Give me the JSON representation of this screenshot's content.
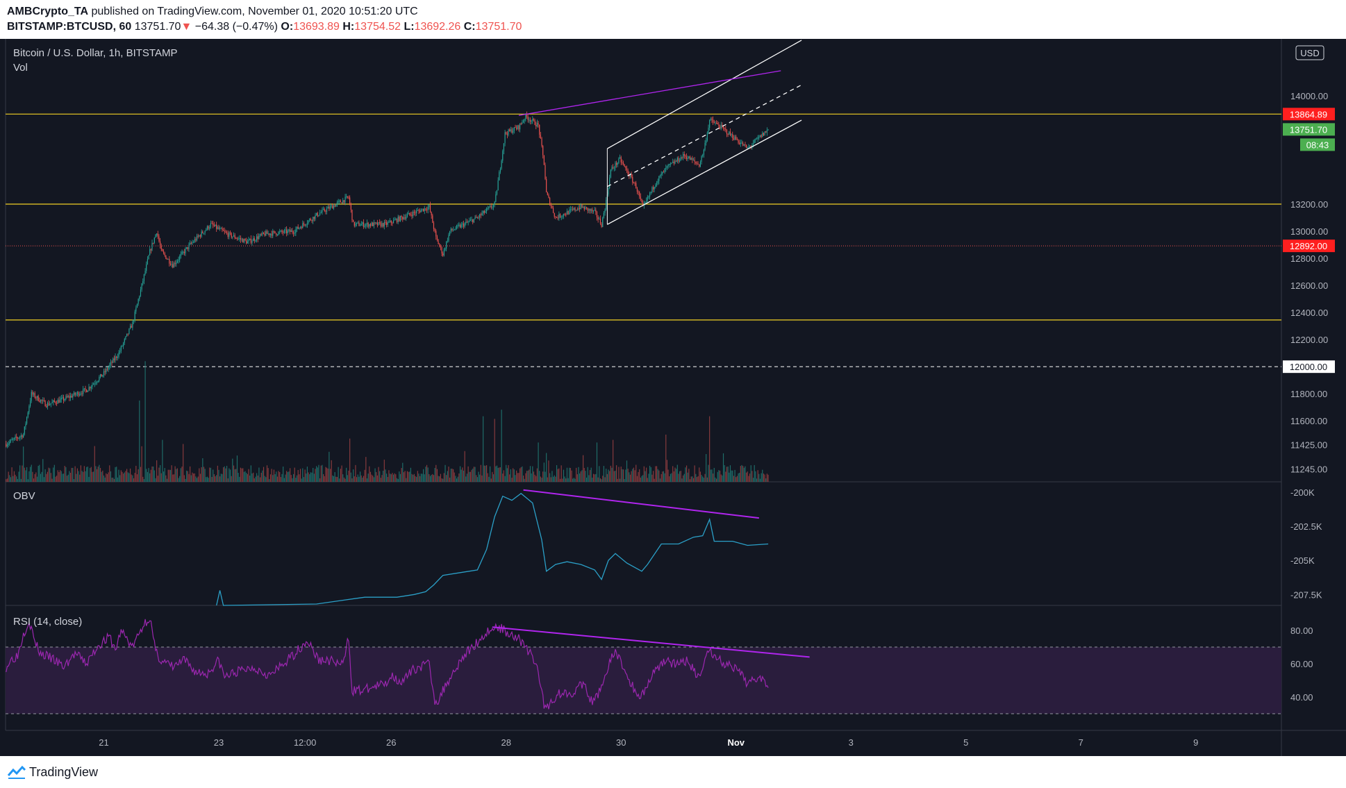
{
  "header": {
    "author": "AMBCrypto_TA",
    "published_text": "published on TradingView.com, November 01, 2020 10:51:20 UTC",
    "symbol": "BITSTAMP:BTCUSD, 60",
    "last": "13751.70",
    "change": "−64.38 (−0.47%)",
    "o_label": "O:",
    "o_value": "13693.89",
    "h_label": "H:",
    "h_value": "13754.52",
    "l_label": "L:",
    "l_value": "13692.26",
    "c_label": "C:",
    "c_value": "13751.70"
  },
  "footer": {
    "brand": "TradingView"
  },
  "colors": {
    "background": "#131722",
    "grid_border": "#363a45",
    "up": "#26a69a",
    "down": "#ef5350",
    "level": "#f2d024",
    "channel": "#ffffff",
    "divergence": "#b025ee",
    "obv": "#2ba0c8",
    "rsi": "#9c27b0",
    "rsi_band": "#2a1d3d",
    "label_red": "#ff1f1f",
    "label_green": "#4caf50"
  },
  "chart_data": {
    "type": "candlestick",
    "title": "Bitcoin / U.S. Dollar, 1h, BITSTAMP",
    "volume_label": "Vol",
    "currency": "USD",
    "ylim": [
      11150,
      14420
    ],
    "y_ticks": [
      "14000.00",
      "13200.00",
      "13000.00",
      "12800.00",
      "12600.00",
      "12400.00",
      "12200.00",
      "11800.00",
      "11600.00",
      "11425.00",
      "11245.00"
    ],
    "x_ticks": [
      {
        "label": "21",
        "bar": 85
      },
      {
        "label": "23",
        "bar": 185
      },
      {
        "label": "12:00",
        "bar": 260
      },
      {
        "label": "26",
        "bar": 335
      },
      {
        "label": "28",
        "bar": 435
      },
      {
        "label": "30",
        "bar": 535
      },
      {
        "label": "Nov",
        "bar": 635
      },
      {
        "label": "3",
        "bar": 735
      },
      {
        "label": "5",
        "bar": 835
      },
      {
        "label": "7",
        "bar": 935
      },
      {
        "label": "9",
        "bar": 1035
      }
    ],
    "total_slots": 1110,
    "keypoints": [
      [
        0,
        11430
      ],
      [
        15,
        11500
      ],
      [
        22,
        11800
      ],
      [
        35,
        11720
      ],
      [
        50,
        11760
      ],
      [
        70,
        11830
      ],
      [
        85,
        11950
      ],
      [
        98,
        12100
      ],
      [
        110,
        12320
      ],
      [
        118,
        12600
      ],
      [
        125,
        12850
      ],
      [
        131,
        13000
      ],
      [
        135,
        12850
      ],
      [
        145,
        12750
      ],
      [
        160,
        12900
      ],
      [
        178,
        13050
      ],
      [
        192,
        12980
      ],
      [
        210,
        12920
      ],
      [
        225,
        12980
      ],
      [
        250,
        13000
      ],
      [
        272,
        13130
      ],
      [
        298,
        13250
      ],
      [
        302,
        13050
      ],
      [
        330,
        13050
      ],
      [
        350,
        13120
      ],
      [
        368,
        13180
      ],
      [
        374,
        12950
      ],
      [
        380,
        12830
      ],
      [
        386,
        13000
      ],
      [
        410,
        13100
      ],
      [
        425,
        13200
      ],
      [
        430,
        13480
      ],
      [
        434,
        13720
      ],
      [
        446,
        13770
      ],
      [
        452,
        13850
      ],
      [
        463,
        13780
      ],
      [
        468,
        13500
      ],
      [
        470,
        13280
      ],
      [
        478,
        13100
      ],
      [
        486,
        13130
      ],
      [
        500,
        13180
      ],
      [
        512,
        13140
      ],
      [
        518,
        13050
      ],
      [
        522,
        13220
      ],
      [
        526,
        13450
      ],
      [
        534,
        13530
      ],
      [
        548,
        13330
      ],
      [
        554,
        13170
      ],
      [
        565,
        13360
      ],
      [
        575,
        13470
      ],
      [
        590,
        13560
      ],
      [
        603,
        13490
      ],
      [
        607,
        13600
      ],
      [
        612,
        13820
      ],
      [
        620,
        13780
      ],
      [
        632,
        13700
      ],
      [
        645,
        13610
      ],
      [
        655,
        13690
      ],
      [
        663,
        13750
      ]
    ],
    "candles_count": 664,
    "volume_ylim": [
      0,
      9
    ],
    "volume_spikes": [
      [
        116,
        6.2
      ],
      [
        121,
        9.2
      ],
      [
        136,
        3.2
      ],
      [
        299,
        3.3
      ],
      [
        415,
        5.0
      ],
      [
        425,
        4.8
      ],
      [
        431,
        5.5
      ],
      [
        463,
        3.0
      ],
      [
        574,
        3.6
      ],
      [
        612,
        5.0
      ],
      [
        514,
        3.0
      ],
      [
        470,
        2.2
      ]
    ],
    "levels": [
      {
        "price": 13864.89,
        "style": "solid",
        "label": "13864.89",
        "label_color": "red"
      },
      {
        "price": 13200,
        "style": "solid"
      },
      {
        "price": 12345,
        "style": "solid"
      }
    ],
    "dotted_levels": [
      {
        "price": 12892,
        "label": "12892.00",
        "label_color": "red"
      }
    ],
    "dashed_levels": [
      {
        "price": 12000,
        "label": "12000.00",
        "label_color": "white"
      }
    ],
    "last_price_label": "13751.70",
    "countdown_label": "08:43",
    "channel": {
      "upper": [
        [
          523,
          13610
        ],
        [
          692,
          14410
        ]
      ],
      "middle": [
        [
          523,
          13330
        ],
        [
          692,
          14080
        ]
      ],
      "lower": [
        [
          523,
          13050
        ],
        [
          692,
          13820
        ]
      ],
      "highlight": [
        [
          523,
          13610
        ],
        [
          540,
          13440
        ],
        [
          555,
          13270
        ],
        [
          560,
          13240
        ]
      ]
    },
    "price_divergence": [
      [
        446,
        13855
      ],
      [
        674,
        14185
      ]
    ],
    "obv": {
      "label": "OBV",
      "ylim": [
        -208300,
        -199250
      ],
      "y_ticks": [
        "-200K",
        "-202.5K",
        "-205K",
        "-207.5K"
      ],
      "keypoints": [
        [
          183,
          -208300
        ],
        [
          186,
          -207200
        ],
        [
          189,
          -208300
        ],
        [
          270,
          -208200
        ],
        [
          295,
          -207900
        ],
        [
          312,
          -207700
        ],
        [
          340,
          -207700
        ],
        [
          355,
          -207500
        ],
        [
          365,
          -207300
        ],
        [
          372,
          -206800
        ],
        [
          380,
          -206100
        ],
        [
          395,
          -205900
        ],
        [
          410,
          -205700
        ],
        [
          418,
          -204200
        ],
        [
          425,
          -201800
        ],
        [
          432,
          -200300
        ],
        [
          440,
          -200600
        ],
        [
          448,
          -200100
        ],
        [
          458,
          -200800
        ],
        [
          466,
          -203500
        ],
        [
          470,
          -205800
        ],
        [
          478,
          -205300
        ],
        [
          488,
          -205100
        ],
        [
          500,
          -205300
        ],
        [
          512,
          -205700
        ],
        [
          518,
          -206400
        ],
        [
          524,
          -205000
        ],
        [
          530,
          -204500
        ],
        [
          540,
          -205200
        ],
        [
          553,
          -205800
        ],
        [
          558,
          -205300
        ],
        [
          570,
          -203800
        ],
        [
          585,
          -203800
        ],
        [
          598,
          -203300
        ],
        [
          606,
          -203200
        ],
        [
          612,
          -202000
        ],
        [
          616,
          -203600
        ],
        [
          632,
          -203600
        ],
        [
          645,
          -203900
        ],
        [
          663,
          -203800
        ]
      ],
      "divergence": [
        [
          450,
          -199850
        ],
        [
          655,
          -201900
        ]
      ]
    },
    "rsi": {
      "label": "RSI (14, close)",
      "ylim": [
        20,
        95
      ],
      "y_ticks": [
        "80.00",
        "60.00",
        "40.00"
      ],
      "upper_band": 70,
      "lower_band": 30,
      "keypoints": [
        [
          0,
          58
        ],
        [
          5,
          63
        ],
        [
          10,
          65
        ],
        [
          15,
          78
        ],
        [
          20,
          86
        ],
        [
          25,
          73
        ],
        [
          30,
          66
        ],
        [
          40,
          63
        ],
        [
          50,
          58
        ],
        [
          60,
          66
        ],
        [
          70,
          60
        ],
        [
          80,
          71
        ],
        [
          90,
          76
        ],
        [
          95,
          68
        ],
        [
          100,
          80
        ],
        [
          110,
          70
        ],
        [
          120,
          84
        ],
        [
          125,
          88
        ],
        [
          130,
          67
        ],
        [
          135,
          62
        ],
        [
          145,
          58
        ],
        [
          155,
          62
        ],
        [
          165,
          55
        ],
        [
          175,
          54
        ],
        [
          185,
          62
        ],
        [
          190,
          52
        ],
        [
          200,
          55
        ],
        [
          215,
          58
        ],
        [
          230,
          53
        ],
        [
          245,
          62
        ],
        [
          262,
          74
        ],
        [
          272,
          62
        ],
        [
          282,
          62
        ],
        [
          293,
          59
        ],
        [
          298,
          76
        ],
        [
          301,
          44
        ],
        [
          310,
          44
        ],
        [
          320,
          46
        ],
        [
          330,
          48
        ],
        [
          335,
          53
        ],
        [
          345,
          49
        ],
        [
          355,
          57
        ],
        [
          368,
          60
        ],
        [
          373,
          38
        ],
        [
          376,
          38
        ],
        [
          383,
          48
        ],
        [
          396,
          63
        ],
        [
          410,
          73
        ],
        [
          420,
          80
        ],
        [
          428,
          82
        ],
        [
          436,
          79
        ],
        [
          445,
          76
        ],
        [
          456,
          66
        ],
        [
          463,
          56
        ],
        [
          468,
          34
        ],
        [
          473,
          36
        ],
        [
          480,
          42
        ],
        [
          493,
          43
        ],
        [
          502,
          48
        ],
        [
          510,
          36
        ],
        [
          515,
          42
        ],
        [
          525,
          60
        ],
        [
          530,
          68
        ],
        [
          538,
          56
        ],
        [
          548,
          42
        ],
        [
          553,
          41
        ],
        [
          565,
          57
        ],
        [
          575,
          63
        ],
        [
          582,
          59
        ],
        [
          592,
          62
        ],
        [
          600,
          54
        ],
        [
          606,
          55
        ],
        [
          610,
          70
        ],
        [
          617,
          64
        ],
        [
          625,
          60
        ],
        [
          636,
          56
        ],
        [
          645,
          48
        ],
        [
          655,
          53
        ],
        [
          663,
          48
        ]
      ],
      "divergence": [
        [
          423,
          82
        ],
        [
          699,
          64
        ]
      ]
    }
  }
}
